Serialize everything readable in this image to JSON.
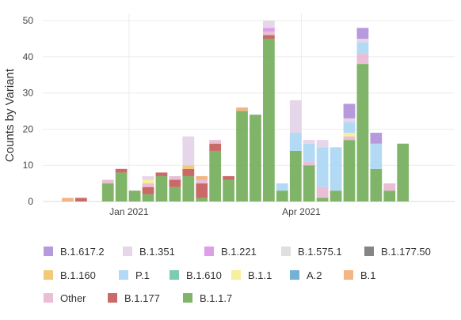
{
  "chart_data": {
    "type": "bar",
    "stacked": true,
    "ylabel": "Counts by Variant",
    "xlabel": "",
    "ylim": [
      0,
      52
    ],
    "y_ticks": [
      0,
      10,
      20,
      30,
      40,
      50
    ],
    "x_ticks": [
      {
        "label": "Jan 2021",
        "value": "2021-01-01"
      },
      {
        "label": "Apr 2021",
        "value": "2021-04-01"
      }
    ],
    "x_range": [
      "2020-11-17",
      "2021-06-20"
    ],
    "grid": true,
    "legend_position": "bottom",
    "weeks": [
      "2020-11-30",
      "2020-12-07",
      "2020-12-14",
      "2020-12-21",
      "2020-12-28",
      "2021-01-04",
      "2021-01-11",
      "2021-01-18",
      "2021-01-25",
      "2021-02-01",
      "2021-02-08",
      "2021-02-15",
      "2021-02-22",
      "2021-03-01",
      "2021-03-08",
      "2021-03-15",
      "2021-03-22",
      "2021-03-29",
      "2021-04-05",
      "2021-04-12",
      "2021-04-19",
      "2021-04-26",
      "2021-05-03",
      "2021-05-10",
      "2021-05-17",
      "2021-05-24",
      "2021-05-31",
      "2021-06-07"
    ],
    "series": [
      {
        "name": "B.1.1.7",
        "color": "#6aa84f",
        "values": [
          0,
          0,
          0,
          5,
          8,
          3,
          2,
          7,
          4,
          7,
          1,
          14,
          6,
          25,
          24,
          45,
          3,
          14,
          10,
          1,
          3,
          17,
          38,
          9,
          3,
          16,
          0,
          0
        ]
      },
      {
        "name": "B.1.177",
        "color": "#c0504d",
        "values": [
          0,
          1,
          0,
          0,
          1,
          0,
          2,
          1,
          2,
          2,
          4,
          2,
          1,
          0,
          0,
          1,
          0,
          0,
          0,
          0,
          0,
          0,
          0,
          0,
          0,
          0,
          0,
          0
        ]
      },
      {
        "name": "Other",
        "color": "#e6b3cc",
        "values": [
          0,
          0,
          0,
          1,
          0,
          0,
          1,
          0,
          1,
          0,
          1,
          1,
          0,
          0,
          0,
          1,
          0,
          0,
          1,
          3,
          0,
          1,
          3,
          0,
          2,
          0,
          0,
          0
        ]
      },
      {
        "name": "B.1",
        "color": "#f0a870",
        "values": [
          1,
          0,
          0,
          0,
          0,
          0,
          0,
          0,
          0,
          0,
          1,
          0,
          0,
          1,
          0,
          0,
          0,
          0,
          0,
          0,
          0,
          0,
          0,
          0,
          0,
          0,
          0,
          0
        ]
      },
      {
        "name": "A.2",
        "color": "#5ba3d0",
        "values": [
          0,
          0,
          0,
          0,
          0,
          0,
          0,
          0,
          0,
          0,
          0,
          0,
          0,
          0,
          0,
          0,
          0,
          0,
          0,
          0,
          0,
          0,
          0,
          0,
          0,
          0,
          0,
          0
        ]
      },
      {
        "name": "B.1.1",
        "color": "#f6ec8a",
        "values": [
          0,
          0,
          0,
          0,
          0,
          0,
          1,
          0,
          0,
          0,
          0,
          0,
          0,
          0,
          0,
          0,
          0,
          0,
          0,
          0,
          0,
          1,
          0,
          0,
          0,
          0,
          0,
          0
        ]
      },
      {
        "name": "B.1.610",
        "color": "#66c2a5",
        "values": [
          0,
          0,
          0,
          0,
          0,
          0,
          0,
          0,
          0,
          0,
          0,
          0,
          0,
          0,
          0,
          0,
          0,
          0,
          0,
          0,
          0,
          0,
          0,
          0,
          0,
          0,
          0,
          0
        ]
      },
      {
        "name": "P.1",
        "color": "#a6d4f2",
        "values": [
          0,
          0,
          0,
          0,
          0,
          0,
          0,
          0,
          0,
          0,
          0,
          0,
          0,
          0,
          0,
          0,
          2,
          5,
          5,
          11,
          12,
          3,
          3,
          7,
          0,
          0,
          0,
          0
        ]
      },
      {
        "name": "B.1.160",
        "color": "#f0c060",
        "values": [
          0,
          0,
          0,
          0,
          0,
          0,
          0,
          0,
          0,
          1,
          0,
          0,
          0,
          0,
          0,
          0,
          0,
          0,
          0,
          0,
          0,
          0,
          0,
          0,
          0,
          0,
          0,
          0
        ]
      },
      {
        "name": "B.1.177.50",
        "color": "#707070",
        "values": [
          0,
          0,
          0,
          0,
          0,
          0,
          0,
          0,
          0,
          0,
          0,
          0,
          0,
          0,
          0,
          0,
          0,
          0,
          0,
          0,
          0,
          0,
          0,
          0,
          0,
          0,
          0,
          0
        ]
      },
      {
        "name": "B.1.575.1",
        "color": "#d9d9d9",
        "values": [
          0,
          0,
          0,
          0,
          0,
          0,
          0,
          0,
          0,
          0,
          0,
          0,
          0,
          0,
          0,
          0,
          0,
          0,
          0,
          0,
          0,
          0,
          0,
          0,
          0,
          0,
          0,
          0
        ]
      },
      {
        "name": "B.1.221",
        "color": "#d98ce6",
        "values": [
          0,
          0,
          0,
          0,
          0,
          0,
          0,
          0,
          0,
          0,
          0,
          0,
          0,
          0,
          0,
          1,
          0,
          0,
          0,
          0,
          0,
          0,
          0,
          0,
          0,
          0,
          0,
          0
        ]
      },
      {
        "name": "B.1.351",
        "color": "#e2cfe6",
        "values": [
          0,
          0,
          0,
          0,
          0,
          0,
          1,
          0,
          0,
          8,
          0,
          0,
          0,
          0,
          0,
          2,
          0,
          9,
          1,
          2,
          0,
          1,
          1,
          0,
          0,
          0,
          0,
          0
        ]
      },
      {
        "name": "B.1.617.2",
        "color": "#a988d6",
        "values": [
          0,
          0,
          0,
          0,
          0,
          0,
          0,
          0,
          0,
          0,
          0,
          0,
          0,
          0,
          0,
          0,
          0,
          0,
          0,
          0,
          0,
          4,
          3,
          3,
          0,
          0,
          0,
          0
        ]
      }
    ],
    "legend": [
      "B.1.617.2",
      "B.1.351",
      "B.1.221",
      "B.1.575.1",
      "B.1.177.50",
      "B.1.160",
      "P.1",
      "B.1.610",
      "B.1.1",
      "A.2",
      "B.1",
      "Other",
      "B.1.177",
      "B.1.1.7"
    ]
  }
}
